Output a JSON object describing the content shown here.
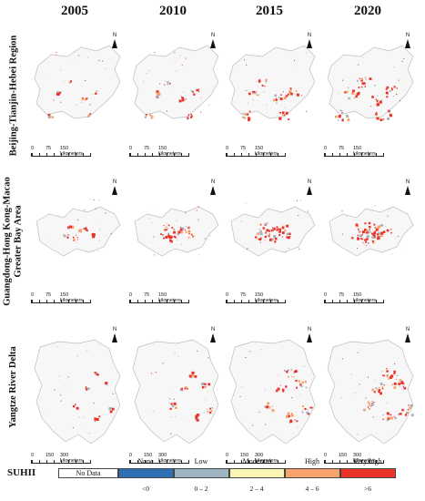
{
  "years": [
    "2005",
    "2010",
    "2015",
    "2020"
  ],
  "regions": [
    {
      "label_line1": "Beijing-Tianjin-Hebei Region",
      "label_line2": "",
      "scale_ticks": [
        "0",
        "75",
        "150 kilometers"
      ]
    },
    {
      "label_line1": "Guangdong-Hong Kong-Macao",
      "label_line2": "Greater Bay Area",
      "scale_ticks": [
        "0",
        "75",
        "150 kilometers"
      ]
    },
    {
      "label_line1": "Yangtze River Delta",
      "label_line2": "",
      "scale_ticks": [
        "0",
        "150",
        "300 kilometers"
      ]
    }
  ],
  "north_label": "N",
  "legend": {
    "title": "SUHII",
    "no_data": "No Data",
    "classes": [
      {
        "name": "None",
        "range": "<0",
        "color": "#2f6fb3"
      },
      {
        "name": "Low",
        "range": "0 – 2",
        "color": "#9fb5c4"
      },
      {
        "name": "Moderate",
        "range": "2 – 4",
        "color": "#fbf5b6"
      },
      {
        "name": "High",
        "range": "4 – 6",
        "color": "#f6a46c"
      },
      {
        "name": "Very high",
        "range": ">6",
        "color": "#ea3229"
      }
    ]
  }
}
